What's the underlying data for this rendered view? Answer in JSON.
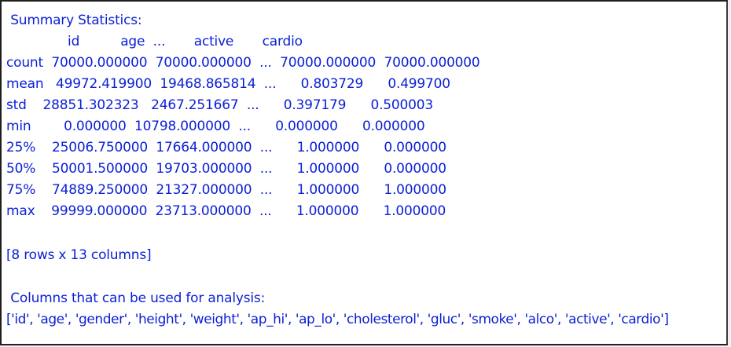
{
  "console": {
    "summary_heading": " Summary Statistics:",
    "header_row": "               id          age  ...       active       cardio",
    "rows": [
      "count  70000.000000  70000.000000  ...  70000.000000  70000.000000",
      "mean   49972.419900  19468.865814  ...      0.803729      0.499700",
      "std    28851.302323   2467.251667  ...      0.397179      0.500003",
      "min        0.000000  10798.000000  ...      0.000000      0.000000",
      "25%    25006.750000  17664.000000  ...      1.000000      0.000000",
      "50%    50001.500000  19703.000000  ...      1.000000      0.000000",
      "75%    74889.250000  21327.000000  ...      1.000000      1.000000",
      "max    99999.000000  23713.000000  ...      1.000000      1.000000"
    ],
    "shape_note": "[8 rows x 13 columns]",
    "columns_heading": " Columns that can be used for analysis:",
    "columns_list": "['id', 'age', 'gender', 'height', 'weight', 'ap_hi', 'ap_lo', 'cholesterol', 'gluc', 'smoke', 'alco', 'active', 'cardio']"
  },
  "colors": {
    "text": "#0a1fd6",
    "background": "#ffffff",
    "border": "#1f1f1f"
  }
}
